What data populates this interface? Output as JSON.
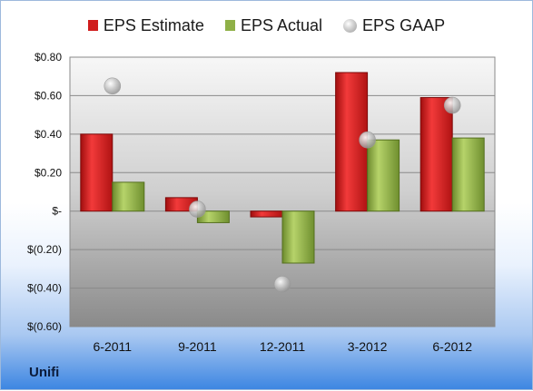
{
  "company": "Unifi",
  "legend": {
    "estimate": "EPS Estimate",
    "actual": "EPS Actual",
    "gaap": "EPS GAAP"
  },
  "colors": {
    "estimate": "#d01c1c",
    "actual": "#8fb047",
    "gaap": "#b8b8b8"
  },
  "chart_data": {
    "type": "bar",
    "categories": [
      "6-2011",
      "9-2011",
      "12-2011",
      "3-2012",
      "6-2012"
    ],
    "series": [
      {
        "name": "EPS Estimate",
        "kind": "bar",
        "values": [
          0.4,
          0.07,
          -0.03,
          0.72,
          0.59
        ]
      },
      {
        "name": "EPS Actual",
        "kind": "bar",
        "values": [
          0.15,
          -0.06,
          -0.27,
          0.37,
          0.38
        ]
      },
      {
        "name": "EPS GAAP",
        "kind": "marker",
        "values": [
          0.65,
          0.01,
          -0.38,
          0.37,
          0.55
        ]
      }
    ],
    "yticks": [
      0.8,
      0.6,
      0.4,
      0.2,
      0,
      -0.2,
      -0.4,
      -0.6
    ],
    "ytick_labels": [
      "$0.80",
      "$0.60",
      "$0.40",
      "$0.20",
      "$-",
      "$(0.20)",
      "$(0.40)",
      "$(0.60)"
    ],
    "ylim": [
      -0.6,
      0.8
    ],
    "grid": true,
    "legend_position": "top"
  }
}
